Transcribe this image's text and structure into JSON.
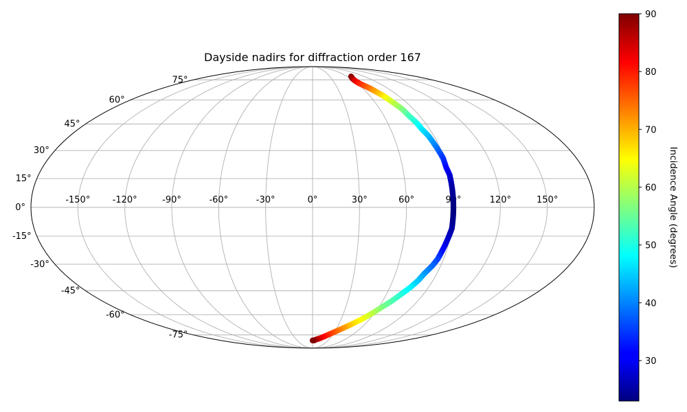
{
  "chart_data": {
    "type": "scatter",
    "projection": "mollweide",
    "title": "Dayside nadirs for diffraction order 167",
    "grid": true,
    "x": {
      "unit": "longitude_deg",
      "range": [
        -180,
        180
      ],
      "ticks": [
        -150,
        -120,
        -90,
        -60,
        -30,
        0,
        30,
        60,
        90,
        120,
        150
      ],
      "tick_labels": [
        "-150°",
        "-120°",
        "-90°",
        "-60°",
        "-30°",
        "0°",
        "30°",
        "60°",
        "90°",
        "120°",
        "150°"
      ]
    },
    "y": {
      "unit": "latitude_deg",
      "range": [
        -90,
        90
      ],
      "ticks": [
        -75,
        -60,
        -45,
        -30,
        -15,
        0,
        15,
        30,
        45,
        60,
        75
      ],
      "tick_labels": [
        "-75°",
        "-60°",
        "-45°",
        "-30°",
        "-15°",
        "0°",
        "15°",
        "30°",
        "45°",
        "60°",
        "75°"
      ]
    },
    "colorbar": {
      "label": "Incidence Angle (degrees)",
      "colormap": "jet",
      "range": [
        23,
        90
      ],
      "ticks": [
        30,
        40,
        50,
        60,
        70,
        80,
        90
      ],
      "tick_labels": [
        "30",
        "40",
        "50",
        "60",
        "70",
        "80",
        "90"
      ],
      "placement": "right"
    },
    "series": [
      {
        "color_by": "incidence_angle",
        "points": [
          {
            "lon": 67,
            "lat": 78,
            "c": 90
          },
          {
            "lon": 63,
            "lat": 76,
            "c": 88
          },
          {
            "lon": 62,
            "lat": 74,
            "c": 84
          },
          {
            "lon": 63,
            "lat": 72,
            "c": 80
          },
          {
            "lon": 66,
            "lat": 70,
            "c": 77
          },
          {
            "lon": 69,
            "lat": 68,
            "c": 74
          },
          {
            "lon": 71,
            "lat": 66,
            "c": 71
          },
          {
            "lon": 74,
            "lat": 63,
            "c": 67
          },
          {
            "lon": 76,
            "lat": 60,
            "c": 63
          },
          {
            "lon": 78,
            "lat": 57,
            "c": 60
          },
          {
            "lon": 80,
            "lat": 54,
            "c": 57
          },
          {
            "lon": 81,
            "lat": 50,
            "c": 53
          },
          {
            "lon": 83,
            "lat": 46,
            "c": 50
          },
          {
            "lon": 84,
            "lat": 42,
            "c": 47
          },
          {
            "lon": 86,
            "lat": 38,
            "c": 44
          },
          {
            "lon": 87,
            "lat": 34,
            "c": 41
          },
          {
            "lon": 88,
            "lat": 30,
            "c": 38
          },
          {
            "lon": 89,
            "lat": 26,
            "c": 35
          },
          {
            "lon": 89,
            "lat": 21,
            "c": 32
          },
          {
            "lon": 90,
            "lat": 17,
            "c": 29
          },
          {
            "lon": 90,
            "lat": 13,
            "c": 27
          },
          {
            "lon": 90,
            "lat": 9,
            "c": 25
          },
          {
            "lon": 90,
            "lat": 5,
            "c": 24
          },
          {
            "lon": 90,
            "lat": 1,
            "c": 23
          },
          {
            "lon": 90,
            "lat": -3,
            "c": 23
          },
          {
            "lon": 90,
            "lat": -7,
            "c": 24
          },
          {
            "lon": 90,
            "lat": -11,
            "c": 25
          },
          {
            "lon": 89,
            "lat": -15,
            "c": 27
          },
          {
            "lon": 88,
            "lat": -19,
            "c": 29
          },
          {
            "lon": 87,
            "lat": -23,
            "c": 32
          },
          {
            "lon": 86,
            "lat": -27,
            "c": 35
          },
          {
            "lon": 84,
            "lat": -31,
            "c": 38
          },
          {
            "lon": 81,
            "lat": -35,
            "c": 41
          },
          {
            "lon": 79,
            "lat": -39,
            "c": 44
          },
          {
            "lon": 76,
            "lat": -43,
            "c": 47
          },
          {
            "lon": 72,
            "lat": -47,
            "c": 50
          },
          {
            "lon": 68,
            "lat": -51,
            "c": 53
          },
          {
            "lon": 63,
            "lat": -55,
            "c": 56
          },
          {
            "lon": 58,
            "lat": -59,
            "c": 60
          },
          {
            "lon": 52,
            "lat": -63,
            "c": 64
          },
          {
            "lon": 44,
            "lat": -67,
            "c": 68
          },
          {
            "lon": 37,
            "lat": -70,
            "c": 72
          },
          {
            "lon": 29,
            "lat": -73,
            "c": 76
          },
          {
            "lon": 20,
            "lat": -76,
            "c": 80
          },
          {
            "lon": 13,
            "lat": -78,
            "c": 83
          },
          {
            "lon": 7,
            "lat": -79,
            "c": 86
          },
          {
            "lon": 3,
            "lat": -80,
            "c": 88
          },
          {
            "lon": 0,
            "lat": -80,
            "c": 90
          }
        ]
      }
    ]
  }
}
